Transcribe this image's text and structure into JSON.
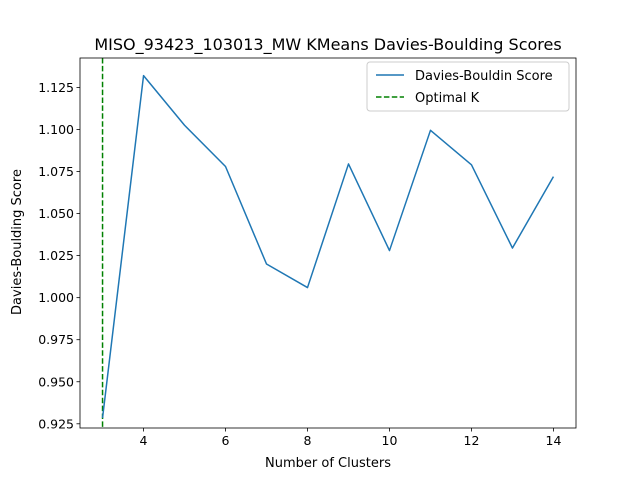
{
  "chart_data": {
    "type": "line",
    "title": "MISO_93423_103013_MW KMeans Davies-Boulding Scores",
    "xlabel": "Number of Clusters",
    "ylabel": "Davies-Boulding Score",
    "xlim": [
      2.45,
      14.55
    ],
    "ylim": [
      0.9225,
      1.1425
    ],
    "xticks": [
      4,
      6,
      8,
      10,
      12,
      14
    ],
    "yticks": [
      0.925,
      0.95,
      0.975,
      1.0,
      1.025,
      1.05,
      1.075,
      1.1,
      1.125
    ],
    "ytick_labels": [
      "0.925",
      "0.950",
      "0.975",
      "1.000",
      "1.025",
      "1.050",
      "1.075",
      "1.100",
      "1.125"
    ],
    "grid": false,
    "legend_position": "upper right",
    "series": [
      {
        "name": "Davies-Bouldin Score",
        "color": "#1f77b4",
        "style": "solid",
        "x": [
          3,
          4,
          5,
          6,
          7,
          8,
          9,
          10,
          11,
          12,
          13,
          14
        ],
        "y": [
          0.9285,
          1.132,
          1.1025,
          1.078,
          1.02,
          1.006,
          1.0795,
          1.028,
          1.0995,
          1.079,
          1.0295,
          1.072
        ]
      }
    ],
    "reference_lines": [
      {
        "name": "Optimal K",
        "orientation": "vertical",
        "x": 3,
        "color": "#008000",
        "style": "dashed"
      }
    ]
  }
}
